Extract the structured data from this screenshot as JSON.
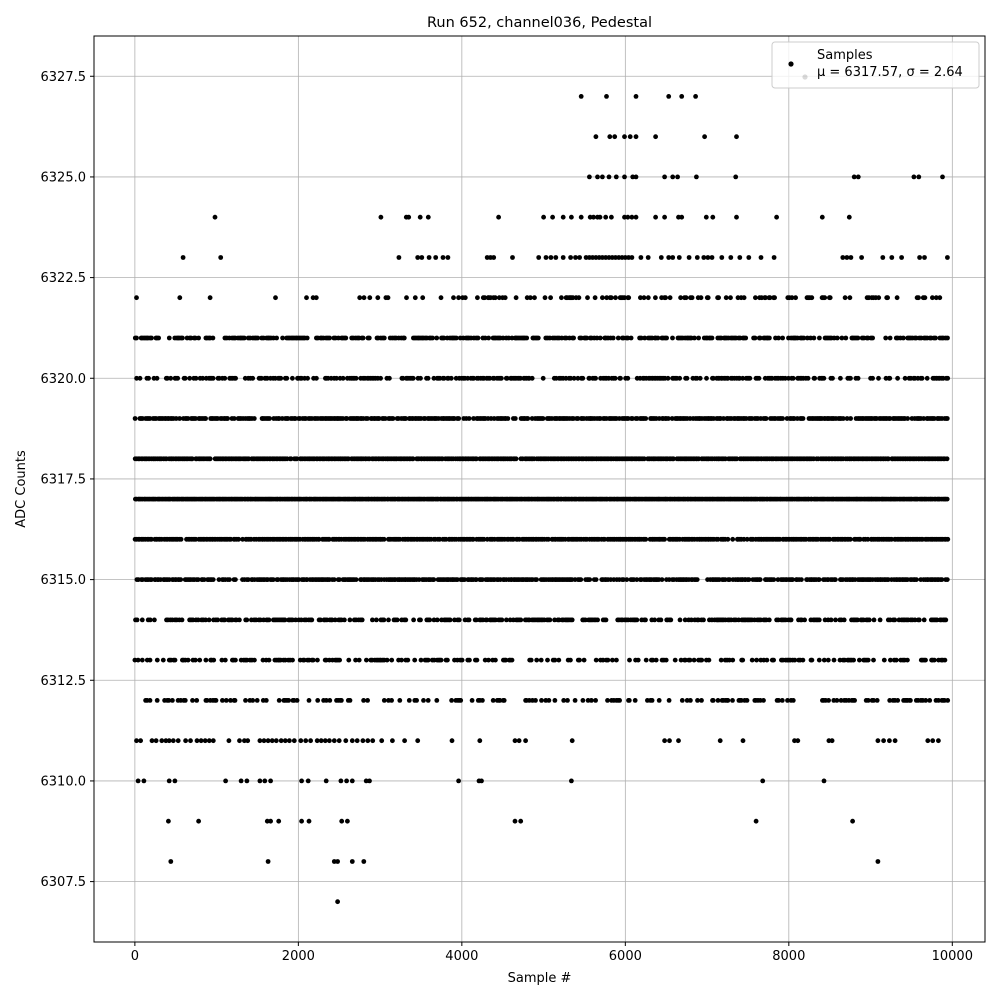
{
  "chart_data": {
    "type": "scatter",
    "title": "Run 652, channel036, Pedestal",
    "xlabel": "Sample #",
    "ylabel": "ADC Counts",
    "xlim": [
      -500,
      10400
    ],
    "ylim": [
      6306.0,
      6328.5
    ],
    "xticks": [
      0,
      2000,
      4000,
      6000,
      8000,
      10000
    ],
    "xtick_labels": [
      "0",
      "2000",
      "4000",
      "6000",
      "8000",
      "10000"
    ],
    "yticks": [
      6307.5,
      6310.0,
      6312.5,
      6315.0,
      6317.5,
      6320.0,
      6322.5,
      6325.0,
      6327.5
    ],
    "ytick_labels": [
      "6307.5",
      "6310.0",
      "6312.5",
      "6315.0",
      "6317.5",
      "6320.0",
      "6322.5",
      "6325.0",
      "6327.5"
    ],
    "grid": true,
    "legend_position": "top-right",
    "legend": {
      "series_label": "Samples",
      "stats_label": "μ = 6317.57, σ = 2.64"
    },
    "marker_color": "#000000",
    "series": [
      {
        "name": "Samples",
        "n_samples": 10000,
        "mean": 6317.57,
        "sigma": 2.64,
        "level_points": [
          {
            "y": 6327,
            "x": [
              5460,
              5770,
              6130,
              6530,
              6690,
              6860
            ]
          },
          {
            "y": 6326,
            "x": [
              5640,
              5810,
              5870,
              5990,
              6060,
              6130,
              6370,
              6970,
              7360
            ]
          },
          {
            "y": 6325,
            "x": [
              5560,
              5660,
              5720,
              5800,
              5890,
              5990,
              6090,
              6130,
              6480,
              6580,
              6640,
              6870,
              7350,
              8800,
              8850,
              9530,
              9590,
              9880
            ]
          },
          {
            "y": 6324,
            "x": [
              980,
              3010,
              3320,
              3350,
              3490,
              3590,
              4450,
              5000,
              5110,
              5240,
              5340,
              5460,
              5570,
              5610,
              5660,
              5690,
              5760,
              5830,
              5990,
              6030,
              6080,
              6130,
              6370,
              6480,
              6650,
              6690,
              6990,
              7070,
              7360,
              7850,
              8410,
              8740
            ]
          },
          {
            "y": 6323,
            "x": [
              590,
              1050,
              3230,
              3460,
              3510,
              3600,
              3680,
              3770,
              3830,
              4310,
              4350,
              4390,
              4620,
              4940,
              5030,
              5090,
              5150,
              5240,
              5330,
              5390,
              5440,
              5520,
              5560,
              5600,
              5640,
              5680,
              5720,
              5760,
              5800,
              5840,
              5880,
              5920,
              5960,
              6000,
              6040,
              6080,
              6190,
              6280,
              6440,
              6530,
              6580,
              6660,
              6780,
              6880,
              6960,
              7010,
              7060,
              7180,
              7290,
              7400,
              7510,
              7660,
              7820,
              8660,
              8710,
              8760,
              8890,
              9150,
              9260,
              9380,
              9600,
              9660,
              9940
            ]
          },
          {
            "y": 6311,
            "x": [
              20,
              70,
              210,
              260,
              330,
              380,
              420,
              470,
              530,
              620,
              680,
              760,
              810,
              860,
              910,
              960,
              1150,
              1280,
              1340,
              1380,
              1530,
              1580,
              1630,
              1680,
              1730,
              1790,
              1840,
              1890,
              1950,
              2030,
              2090,
              2150,
              2230,
              2280,
              2330,
              2380,
              2440,
              2500,
              2580,
              2660,
              2720,
              2790,
              2850,
              2910,
              3020,
              3150,
              3300,
              3460,
              3880,
              4220,
              4650,
              4700,
              4780,
              5350,
              6480,
              6540,
              6650,
              7160,
              7440,
              8070,
              8110,
              8490,
              8530,
              9090,
              9160,
              9230,
              9300,
              9700,
              9760,
              9830
            ]
          },
          {
            "y": 6310,
            "x": [
              40,
              110,
              420,
              490,
              1110,
              1300,
              1370,
              1530,
              1590,
              1660,
              2040,
              2120,
              2340,
              2520,
              2590,
              2660,
              2830,
              2870,
              3960,
              4210,
              4240,
              5340,
              7680,
              8430
            ]
          },
          {
            "y": 6309,
            "x": [
              410,
              780,
              1620,
              1660,
              1760,
              2040,
              2130,
              2530,
              2600,
              4650,
              4720,
              7600,
              8780
            ]
          },
          {
            "y": 6308,
            "x": [
              440,
              1630,
              2440,
              2480,
              2660,
              2800,
              9090
            ]
          },
          {
            "y": 6307,
            "x": [
              2480
            ]
          }
        ],
        "dense_levels": [
          {
            "y": 6322,
            "density": 0.32,
            "sparse_x": [
              20,
              550,
              920,
              1720,
              2100,
              2180,
              2220,
              2750
            ],
            "dense_start": 2800
          },
          {
            "y": 6321,
            "density": 0.55,
            "dense_start": 0
          },
          {
            "y": 6320,
            "density": 0.55,
            "dense_start": 0
          },
          {
            "y": 6319,
            "density": 0.75,
            "dense_start": 0
          },
          {
            "y": 6318,
            "density": 0.95,
            "dense_start": 0
          },
          {
            "y": 6317,
            "density": 1.0,
            "dense_start": 0
          },
          {
            "y": 6316,
            "density": 0.88,
            "dense_start": 0
          },
          {
            "y": 6315,
            "density": 0.78,
            "dense_start": 0
          },
          {
            "y": 6314,
            "density": 0.55,
            "dense_start": 0
          },
          {
            "y": 6313,
            "density": 0.42,
            "dense_start": 0
          },
          {
            "y": 6312,
            "density": 0.32,
            "dense_start": 0
          }
        ]
      }
    ]
  }
}
